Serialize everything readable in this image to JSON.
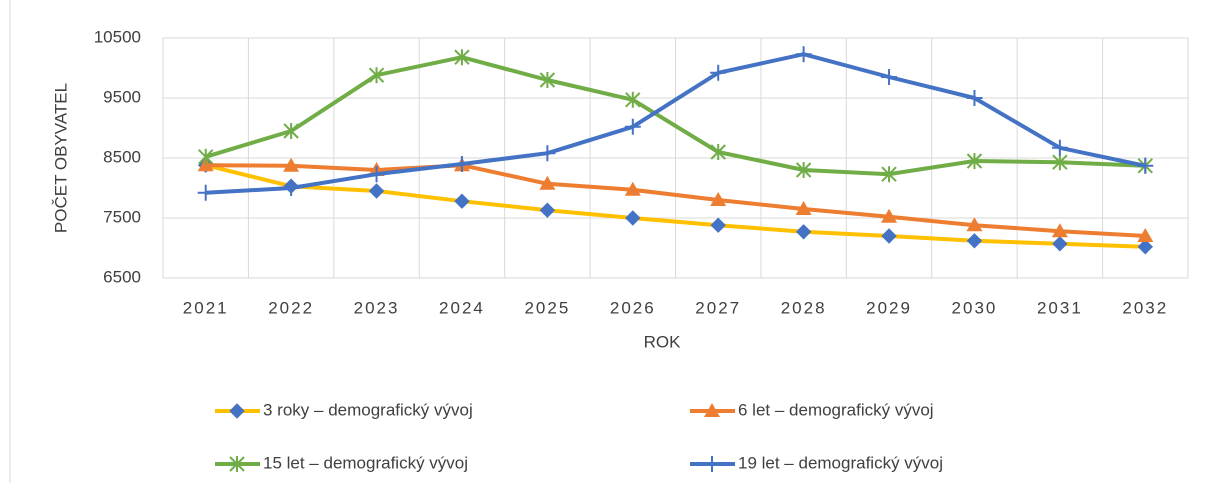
{
  "chart_data": {
    "type": "line",
    "x_label": "ROK",
    "y_label": "POČET OBYVATEL",
    "categories": [
      "2021",
      "2022",
      "2023",
      "2024",
      "2025",
      "2026",
      "2027",
      "2028",
      "2029",
      "2030",
      "2031",
      "2032"
    ],
    "ylim": [
      6500,
      10500
    ],
    "yticks": [
      6500,
      7500,
      8500,
      9500,
      10500
    ],
    "grid": true,
    "series": [
      {
        "name": "3 roky – demografický vývoj",
        "color": "#ffc000",
        "marker": "diamond",
        "marker_color": "#4472c4",
        "values": [
          8380,
          8030,
          7950,
          7780,
          7630,
          7500,
          7380,
          7270,
          7200,
          7120,
          7070,
          7020
        ]
      },
      {
        "name": "6 let – demografický vývoj",
        "color": "#ed7d31",
        "marker": "triangle",
        "marker_color": "#ed7d31",
        "values": [
          8380,
          8370,
          8300,
          8380,
          8070,
          7970,
          7800,
          7650,
          7520,
          7380,
          7280,
          7200
        ]
      },
      {
        "name": "15 let – demografický vývoj",
        "color": "#70ad47",
        "marker": "star",
        "marker_color": "#70ad47",
        "values": [
          8520,
          8950,
          9880,
          10180,
          9800,
          9470,
          8600,
          8300,
          8230,
          8450,
          8430,
          8370
        ]
      },
      {
        "name": "19 let – demografický vývoj",
        "color": "#4472c4",
        "marker": "plus",
        "marker_color": "#4472c4",
        "values": [
          7920,
          8000,
          8230,
          8400,
          8580,
          9020,
          9920,
          10230,
          9850,
          9500,
          8670,
          8370
        ]
      }
    ]
  }
}
